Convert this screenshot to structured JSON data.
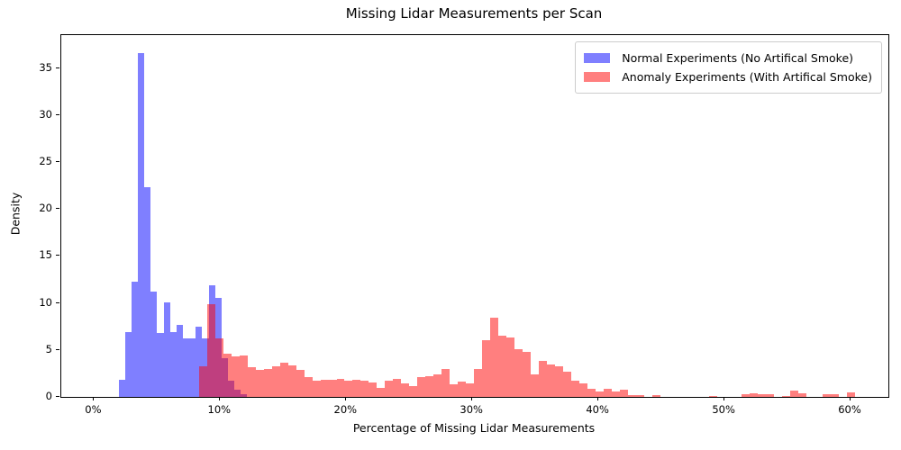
{
  "chart_data": {
    "type": "histogram",
    "title": "Missing Lidar Measurements per Scan",
    "xlabel": "Percentage of Missing Lidar Measurements",
    "ylabel": "Density",
    "xlim": [
      -2.6,
      63.0
    ],
    "ylim": [
      0,
      38.5
    ],
    "grid": false,
    "legend_position": "upper right",
    "background_color": "#ffffff",
    "spine_color": "#000000",
    "overlap_color_hex": "#bf407f",
    "x_ticks": [
      {
        "value": 0,
        "label": "0%"
      },
      {
        "value": 10,
        "label": "10%"
      },
      {
        "value": 20,
        "label": "20%"
      },
      {
        "value": 30,
        "label": "30%"
      },
      {
        "value": 40,
        "label": "40%"
      },
      {
        "value": 50,
        "label": "50%"
      },
      {
        "value": 60,
        "label": "60%"
      }
    ],
    "y_ticks": [
      {
        "value": 0,
        "label": "0"
      },
      {
        "value": 5,
        "label": "5"
      },
      {
        "value": 10,
        "label": "10"
      },
      {
        "value": 15,
        "label": "15"
      },
      {
        "value": 20,
        "label": "20"
      },
      {
        "value": 25,
        "label": "25"
      },
      {
        "value": 30,
        "label": "30"
      },
      {
        "value": 35,
        "label": "35"
      }
    ],
    "series": [
      {
        "name": "normal",
        "label": "Normal Experiments (No Artifical Smoke)",
        "color_hex": "#8080ff",
        "fill": "rgba(0,0,255,0.5)",
        "bin_start_pct": 1.95,
        "bin_width_pct": 0.51,
        "densities": [
          1.8,
          6.9,
          12.3,
          36.6,
          22.3,
          11.2,
          6.8,
          10.1,
          6.9,
          7.7,
          6.2,
          6.2,
          7.5,
          6.2,
          11.9,
          10.5,
          4.1,
          1.7,
          0.8,
          0.3
        ]
      },
      {
        "name": "anomaly",
        "label": "Anomaly Experiments (With Artifical Smoke)",
        "color_hex": "#ff8080",
        "fill": "rgba(255,0,0,0.5)",
        "bin_start_pct": 8.3,
        "bin_width_pct": 0.643,
        "densities": [
          3.3,
          9.9,
          6.2,
          4.6,
          4.3,
          4.4,
          3.2,
          2.9,
          3.0,
          3.3,
          3.6,
          3.4,
          2.9,
          2.1,
          1.7,
          1.8,
          1.8,
          1.9,
          1.7,
          1.8,
          1.7,
          1.5,
          1.0,
          1.7,
          1.9,
          1.4,
          1.2,
          2.1,
          2.2,
          2.4,
          3.0,
          1.3,
          1.6,
          1.4,
          3.0,
          6.0,
          8.4,
          6.5,
          6.3,
          5.1,
          4.8,
          2.4,
          3.8,
          3.5,
          3.3,
          2.7,
          1.7,
          1.4,
          0.9,
          0.55,
          0.85,
          0.55,
          0.75,
          0.2,
          0.15,
          0,
          0.15,
          0,
          0,
          0,
          0,
          0,
          0,
          0.12,
          0,
          0,
          0,
          0.25,
          0.38,
          0.25,
          0.25,
          0,
          0.1,
          0.63,
          0.38,
          0,
          0,
          0.25,
          0.3,
          0,
          0.47
        ]
      }
    ]
  }
}
